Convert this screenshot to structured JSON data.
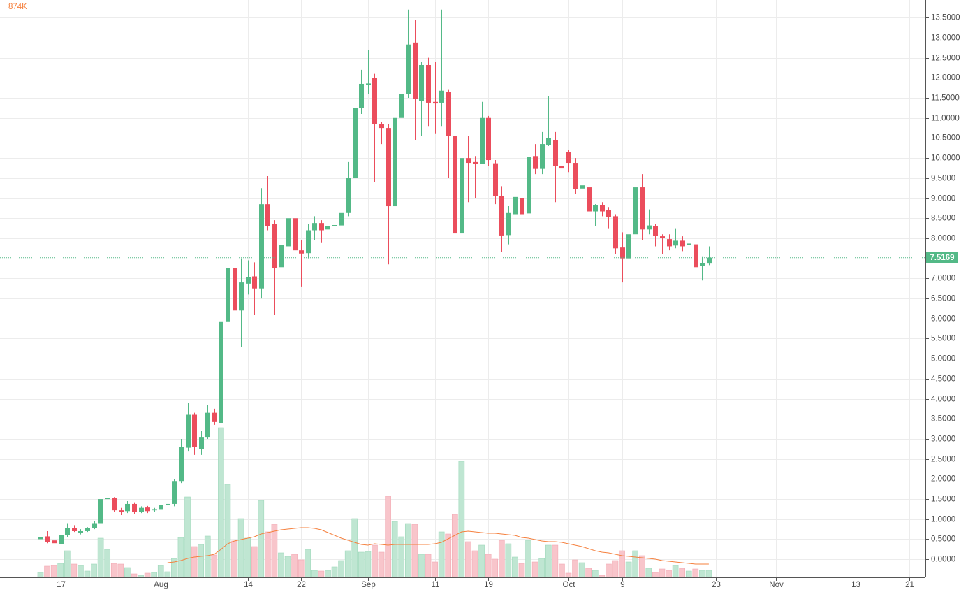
{
  "chart_data": {
    "type": "candlestick",
    "xlim": [
      -6.06,
      132.4
    ],
    "ylim": [
      -0.45,
      13.94
    ],
    "grid": true,
    "up_color": "#53b987",
    "down_color": "#eb4d5c",
    "xticks": [
      {
        "value": 3,
        "label": "17"
      },
      {
        "value": 18,
        "label": "Aug"
      },
      {
        "value": 31,
        "label": "14"
      },
      {
        "value": 39,
        "label": "22"
      },
      {
        "value": 49,
        "label": "Sep"
      },
      {
        "value": 59,
        "label": "11"
      },
      {
        "value": 67,
        "label": "19"
      },
      {
        "value": 79,
        "label": "Oct"
      },
      {
        "value": 87,
        "label": "9"
      },
      {
        "value": 101,
        "label": "23"
      },
      {
        "value": 110,
        "label": "Nov"
      },
      {
        "value": 122,
        "label": "13"
      },
      {
        "value": 130,
        "label": "21"
      }
    ],
    "yticks": [
      {
        "value": 0,
        "label": "0.0000"
      },
      {
        "value": 0.5,
        "label": "0.5000"
      },
      {
        "value": 1,
        "label": "1.0000"
      },
      {
        "value": 1.5,
        "label": "1.5000"
      },
      {
        "value": 2,
        "label": "2.0000"
      },
      {
        "value": 2.5,
        "label": "2.5000"
      },
      {
        "value": 3,
        "label": "3.0000"
      },
      {
        "value": 3.5,
        "label": "3.5000"
      },
      {
        "value": 4,
        "label": "4.0000"
      },
      {
        "value": 4.5,
        "label": "4.5000"
      },
      {
        "value": 5,
        "label": "5.0000"
      },
      {
        "value": 5.5,
        "label": "5.5000"
      },
      {
        "value": 6,
        "label": "6.0000"
      },
      {
        "value": 6.5,
        "label": "6.5000"
      },
      {
        "value": 7,
        "label": "7.0000"
      },
      {
        "value": 7.5,
        "label": "7.5000"
      },
      {
        "value": 8,
        "label": "8.0000"
      },
      {
        "value": 8.5,
        "label": "8.5000"
      },
      {
        "value": 9,
        "label": "9.0000"
      },
      {
        "value": 9.5,
        "label": "9.5000"
      },
      {
        "value": 10,
        "label": "10.0000"
      },
      {
        "value": 10.5,
        "label": "10.5000"
      },
      {
        "value": 11,
        "label": "11.0000"
      },
      {
        "value": 11.5,
        "label": "11.5000"
      },
      {
        "value": 12,
        "label": "12.0000"
      },
      {
        "value": 12.5,
        "label": "12.5000"
      },
      {
        "value": 13,
        "label": "13.0000"
      },
      {
        "value": 13.5,
        "label": "13.5000"
      }
    ],
    "open": [
      0.5,
      0.57,
      0.47,
      0.38,
      0.6,
      0.77,
      0.65,
      0.7,
      0.77,
      0.9,
      1.5,
      1.53,
      1.22,
      1.2,
      1.38,
      1.18,
      1.29,
      1.22,
      1.25,
      1.35,
      1.38,
      1.95,
      2.78,
      3.6,
      2.75,
      3.05,
      3.65,
      3.4,
      5.93,
      7.25,
      6.2,
      6.87,
      7.05,
      6.75,
      8.85,
      8.35,
      7.28,
      7.8,
      8.5,
      7.7,
      7.63,
      8.2,
      8.38,
      8.22,
      8.3,
      8.32,
      8.63,
      9.5,
      11.25,
      11.83,
      12.0,
      10.85,
      10.75,
      8.8,
      11.0,
      11.6,
      12.88,
      11.42,
      12.32,
      11.4,
      11.38,
      11.65,
      10.55,
      8.12,
      10.0,
      9.9,
      9.85,
      11.0,
      9.87,
      9.05,
      8.08,
      8.6,
      9.0,
      8.62,
      10.05,
      9.73,
      10.33,
      10.45,
      9.8,
      10.15,
      9.88,
      9.24,
      9.27,
      8.67,
      8.82,
      8.7,
      8.55,
      7.77,
      7.5,
      8.1,
      9.27,
      8.22,
      8.3,
      8.05,
      7.98,
      7.82,
      7.94,
      7.83,
      7.85,
      7.32,
      7.37
    ],
    "high": [
      0.82,
      0.7,
      0.5,
      0.75,
      0.9,
      0.85,
      0.75,
      0.8,
      0.95,
      1.6,
      1.65,
      1.55,
      1.28,
      1.45,
      1.42,
      1.32,
      1.33,
      1.28,
      1.38,
      1.42,
      2.0,
      3.0,
      3.9,
      3.65,
      3.2,
      3.85,
      3.75,
      6.6,
      7.78,
      7.6,
      7.5,
      7.45,
      7.4,
      9.25,
      9.55,
      8.45,
      8.1,
      8.9,
      8.6,
      7.95,
      8.35,
      8.55,
      8.45,
      8.45,
      8.45,
      8.75,
      9.9,
      11.8,
      12.2,
      12.7,
      12.1,
      10.9,
      10.85,
      11.3,
      11.85,
      13.7,
      13.45,
      12.4,
      12.5,
      12.4,
      13.7,
      11.7,
      10.7,
      10.0,
      10.55,
      10.05,
      11.4,
      11.05,
      9.95,
      9.3,
      8.8,
      9.4,
      9.2,
      10.4,
      10.35,
      10.65,
      11.55,
      10.65,
      10.15,
      10.2,
      10.0,
      9.35,
      9.3,
      8.85,
      8.9,
      8.78,
      8.6,
      8.15,
      8.1,
      9.35,
      9.6,
      8.72,
      8.35,
      8.1,
      8.1,
      8.25,
      8.05,
      8.1,
      7.9,
      7.55,
      7.8
    ],
    "low": [
      0.48,
      0.4,
      0.37,
      0.35,
      0.55,
      0.68,
      0.62,
      0.68,
      0.75,
      0.85,
      1.4,
      1.18,
      1.1,
      1.15,
      1.12,
      1.15,
      1.15,
      1.18,
      1.2,
      1.3,
      1.32,
      1.9,
      2.7,
      2.6,
      2.6,
      3.0,
      3.35,
      3.3,
      5.7,
      5.9,
      5.3,
      6.6,
      6.1,
      6.5,
      8.2,
      6.1,
      6.25,
      7.5,
      6.9,
      6.8,
      7.5,
      7.95,
      7.9,
      8.05,
      8.1,
      8.25,
      8.55,
      9.45,
      11.1,
      11.6,
      9.4,
      10.35,
      7.35,
      7.6,
      10.3,
      11.5,
      10.45,
      10.55,
      10.8,
      10.6,
      10.8,
      9.5,
      7.55,
      6.5,
      8.9,
      9.0,
      9.85,
      9.8,
      8.85,
      7.65,
      7.85,
      8.35,
      8.4,
      8.58,
      9.6,
      9.6,
      10.3,
      8.9,
      9.6,
      9.65,
      9.1,
      9.2,
      8.4,
      8.3,
      8.55,
      8.25,
      7.6,
      6.9,
      7.45,
      8.1,
      7.95,
      8.1,
      7.8,
      7.6,
      7.7,
      7.75,
      7.68,
      7.75,
      7.27,
      6.95,
      7.33
    ],
    "close": [
      0.55,
      0.43,
      0.4,
      0.6,
      0.77,
      0.7,
      0.7,
      0.77,
      0.9,
      1.5,
      1.52,
      1.22,
      1.17,
      1.38,
      1.17,
      1.28,
      1.2,
      1.25,
      1.35,
      1.38,
      1.95,
      2.8,
      3.6,
      2.8,
      3.05,
      3.65,
      3.42,
      5.93,
      7.25,
      6.2,
      6.9,
      7.03,
      6.75,
      8.85,
      8.3,
      7.25,
      7.83,
      8.5,
      7.7,
      7.62,
      8.2,
      8.38,
      8.2,
      8.3,
      8.33,
      8.63,
      9.5,
      11.25,
      11.85,
      11.86,
      10.85,
      10.75,
      8.8,
      11.0,
      11.6,
      12.83,
      11.47,
      12.32,
      11.38,
      11.36,
      11.68,
      10.55,
      8.12,
      10.0,
      9.88,
      9.85,
      11.0,
      9.95,
      9.05,
      8.07,
      8.63,
      9.03,
      8.6,
      10.02,
      9.73,
      10.35,
      10.5,
      9.8,
      9.74,
      9.88,
      9.23,
      9.32,
      8.67,
      8.82,
      8.67,
      8.53,
      7.75,
      7.5,
      8.1,
      9.27,
      8.22,
      8.32,
      8.06,
      8.0,
      7.8,
      7.94,
      7.8,
      7.87,
      7.28,
      7.38,
      7.5169
    ],
    "last_price": 7.5169,
    "volume": {
      "values": [
        609,
        1392,
        1479,
        1740,
        3306,
        1653,
        1479,
        783,
        1653,
        4872,
        3480,
        1740,
        1653,
        1218,
        435,
        261,
        522,
        609,
        1479,
        696,
        2349,
        4959,
        10005,
        3828,
        4089,
        5133,
        2784,
        18618,
        11571,
        4524,
        7308,
        4872,
        3828,
        9570,
        5655,
        6612,
        3045,
        2610,
        2871,
        2175,
        3480,
        870,
        783,
        870,
        1305,
        2088,
        3306,
        7308,
        3132,
        3219,
        4002,
        3132,
        10092,
        6960,
        5046,
        6699,
        6612,
        2871,
        2871,
        1914,
        5655,
        5394,
        7830,
        14442,
        4437,
        3306,
        4002,
        2871,
        2262,
        4611,
        4176,
        2523,
        1740,
        4611,
        1914,
        2349,
        4002,
        4002,
        1653,
        522,
        2175,
        1827,
        1131,
        870,
        261,
        1653,
        2088,
        3306,
        1914,
        3306,
        2697,
        1131,
        609,
        1044,
        870,
        1479,
        1131,
        783,
        1044,
        870,
        874
      ],
      "value_labels": [
        null,
        null,
        null,
        null,
        null,
        null,
        null,
        null,
        null,
        null,
        null,
        null,
        null,
        null,
        null,
        null,
        null,
        null,
        null,
        null,
        null,
        null,
        null,
        null,
        null,
        null,
        null,
        null,
        null,
        null,
        null,
        null,
        null,
        null,
        null,
        null,
        null,
        null,
        null,
        null,
        null,
        null,
        null,
        null,
        null,
        null,
        null,
        null,
        null,
        null,
        null,
        null,
        null,
        null,
        null,
        null,
        null,
        null,
        null,
        null,
        null,
        null,
        null,
        null,
        null,
        null,
        null,
        null,
        null,
        null,
        null,
        null,
        null,
        null,
        null,
        null,
        null,
        null,
        null,
        null,
        null,
        null,
        null,
        null,
        null,
        null,
        null,
        null,
        null,
        null,
        null,
        null,
        null,
        null,
        null,
        null,
        null,
        null,
        null,
        null,
        "874K"
      ],
      "up_color": "#bfe6d2",
      "down_color": "#f8c5cb",
      "ma_color": "#f5803e",
      "ma": [
        null,
        null,
        null,
        null,
        null,
        null,
        null,
        null,
        null,
        null,
        null,
        null,
        null,
        null,
        null,
        null,
        null,
        null,
        null,
        1827,
        1914,
        2088,
        2349,
        2523,
        2610,
        2697,
        2871,
        3480,
        4176,
        4524,
        4698,
        4872,
        5046,
        5394,
        5568,
        5742,
        5916,
        6003,
        6090,
        6177,
        6177,
        6090,
        5916,
        5568,
        5220,
        4872,
        4611,
        4350,
        4089,
        4002,
        4176,
        4089,
        4002,
        4089,
        4089,
        4089,
        4089,
        4089,
        4089,
        4176,
        4350,
        4785,
        5220,
        5655,
        5742,
        5655,
        5568,
        5481,
        5481,
        5394,
        5307,
        5220,
        4959,
        4872,
        4698,
        4524,
        4437,
        4437,
        4350,
        4176,
        4002,
        3828,
        3567,
        3306,
        3132,
        3045,
        2871,
        2697,
        2610,
        2523,
        2436,
        2349,
        2262,
        2088,
        2001,
        1914,
        1827,
        1740,
        1653,
        1653,
        1653
      ]
    }
  }
}
